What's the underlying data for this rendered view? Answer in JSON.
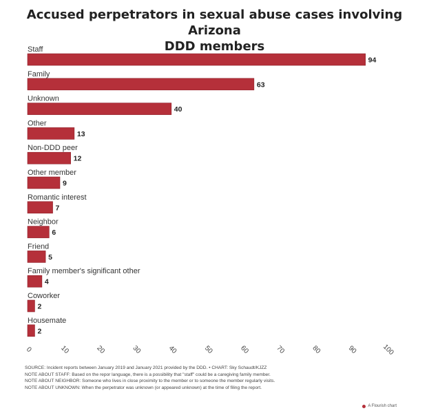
{
  "chart_data": {
    "type": "bar",
    "orientation": "horizontal",
    "title": "Accused perpetrators in sexual abuse cases involving Arizona DDD members",
    "title_lines": [
      "Accused perpetrators in sexual abuse cases involving Arizona",
      "DDD members"
    ],
    "categories": [
      "Staff",
      "Family",
      "Unknown",
      "Other",
      "Non-DDD peer",
      "Other member",
      "Romantic interest",
      "Neighbor",
      "Friend",
      "Family member's significant other",
      "Coworker",
      "Housemate"
    ],
    "values": [
      94,
      63,
      40,
      13,
      12,
      9,
      7,
      6,
      5,
      4,
      2,
      2
    ],
    "xlim": [
      0,
      100
    ],
    "xticks": [
      0,
      10,
      20,
      30,
      40,
      50,
      60,
      70,
      80,
      90,
      100
    ],
    "xlabel": "",
    "ylabel": "",
    "grid": false,
    "legend": "none",
    "bar_color": "#b5303a"
  },
  "notes": [
    "SOURCE: Incident reports between January 2019 and January 2021 provided by the DDD. • CHART: Sky Schaudt/KJZZ",
    "NOTE ABOUT STAFF: Based on the repor language, there is a possibility that \"staff\" could be a caregiving family member.",
    "NOTE ABOUT NEIGHBOR: Someone who lives in close proximity to the member or to someone the member regularly visits.",
    "NOTE ABOUT UNKNOWN: When the perpetrator was unknown (or appeared unknown) at the time of filing the report."
  ],
  "credit": "A Flourish chart"
}
